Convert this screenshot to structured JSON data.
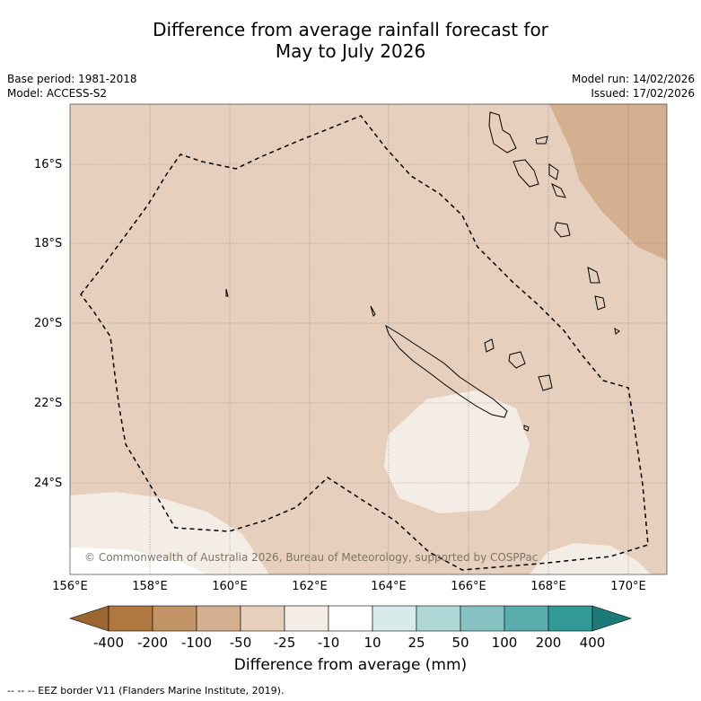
{
  "title_line1": "Difference from average rainfall forecast for",
  "title_line2": "May to July 2026",
  "base_period": "Base period: 1981-2018",
  "model": "Model: ACCESS-S2",
  "model_run": "Model run: 14/02/2026",
  "issued": "Issued: 17/02/2026",
  "lat_labels": [
    "16°S",
    "18°S",
    "20°S",
    "22°S",
    "24°S"
  ],
  "lon_labels": [
    "156°E",
    "158°E",
    "160°E",
    "162°E",
    "164°E",
    "166°E",
    "168°E",
    "170°E"
  ],
  "colorbar": {
    "ticks": [
      "-400",
      "-200",
      "-100",
      "-50",
      "-25",
      "-10",
      "10",
      "25",
      "50",
      "100",
      "200",
      "400"
    ],
    "colors": [
      "#9b6630",
      "#b07840",
      "#c29365",
      "#d5b090",
      "#e6d0bd",
      "#f4ede6",
      "#ffffff",
      "#d7ebea",
      "#b0d8d7",
      "#86c2c1",
      "#5aadad",
      "#319a97",
      "#1d7a78"
    ],
    "title": "Difference from average (mm)"
  },
  "copyright": "© Commonwealth of Australia 2026, Bureau of Meteorology, supported by COSPPac",
  "footer": "--  --  -- EEZ border V11 (Flanders Marine Institute, 2019)."
}
